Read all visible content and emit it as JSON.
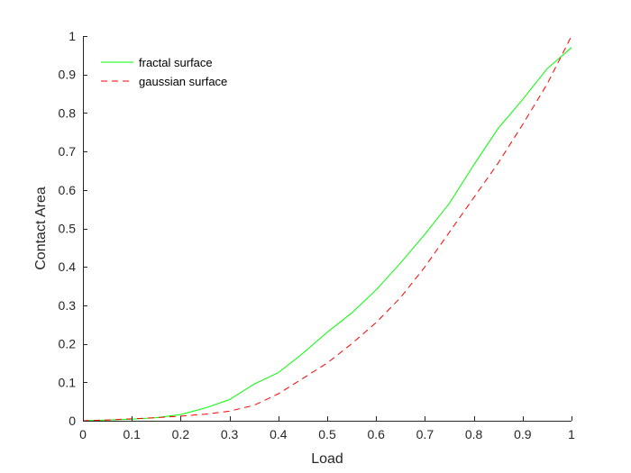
{
  "chart_data": {
    "type": "line",
    "title": "",
    "xlabel": "Load",
    "ylabel": "Contact Area",
    "xlim": [
      0,
      1
    ],
    "ylim": [
      0,
      1
    ],
    "xticks": [
      0,
      0.1,
      0.2,
      0.3,
      0.4,
      0.5,
      0.6,
      0.7,
      0.8,
      0.9,
      1
    ],
    "yticks": [
      0,
      0.1,
      0.2,
      0.3,
      0.4,
      0.5,
      0.6,
      0.7,
      0.8,
      0.9,
      1
    ],
    "xtick_labels": [
      "0",
      "0.1",
      "0.2",
      "0.3",
      "0.4",
      "0.5",
      "0.6",
      "0.7",
      "0.8",
      "0.9",
      "1"
    ],
    "ytick_labels": [
      "0",
      "0.1",
      "0.2",
      "0.3",
      "0.4",
      "0.5",
      "0.6",
      "0.7",
      "0.8",
      "0.9",
      "1"
    ],
    "grid": false,
    "legend_position": "top-left",
    "series": [
      {
        "name": "fractal surface",
        "color": "#00ff00",
        "dash": "solid",
        "x": [
          0,
          0.05,
          0.1,
          0.15,
          0.2,
          0.25,
          0.3,
          0.35,
          0.4,
          0.45,
          0.5,
          0.55,
          0.6,
          0.65,
          0.7,
          0.75,
          0.8,
          0.85,
          0.9,
          0.95,
          1.0
        ],
        "y": [
          0,
          0.002,
          0.004,
          0.008,
          0.016,
          0.033,
          0.055,
          0.095,
          0.125,
          0.175,
          0.23,
          0.28,
          0.34,
          0.41,
          0.485,
          0.565,
          0.665,
          0.76,
          0.835,
          0.915,
          0.97
        ]
      },
      {
        "name": "gaussian surface",
        "color": "#ff0000",
        "dash": "dashed",
        "x": [
          0,
          0.05,
          0.1,
          0.15,
          0.2,
          0.25,
          0.3,
          0.35,
          0.4,
          0.45,
          0.5,
          0.55,
          0.6,
          0.65,
          0.7,
          0.75,
          0.8,
          0.85,
          0.9,
          0.95,
          1.0
        ],
        "y": [
          0,
          0.002,
          0.005,
          0.008,
          0.012,
          0.017,
          0.025,
          0.04,
          0.07,
          0.11,
          0.15,
          0.2,
          0.255,
          0.32,
          0.4,
          0.49,
          0.58,
          0.67,
          0.77,
          0.875,
          1.0
        ]
      }
    ]
  }
}
